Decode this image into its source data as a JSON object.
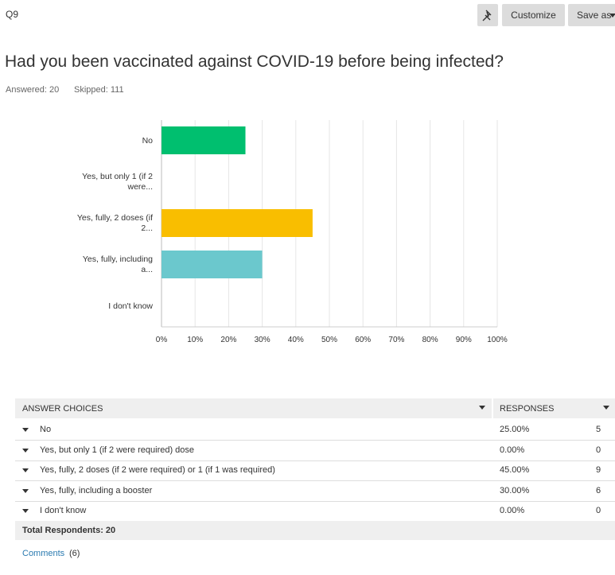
{
  "header": {
    "question_id": "Q9",
    "buttons": {
      "customize": "Customize",
      "save_as": "Save as"
    },
    "title": "Had you been vaccinated against COVID-19 before being infected?",
    "answered": "Answered: 20",
    "skipped": "Skipped: 111"
  },
  "chart_data": {
    "type": "bar",
    "orientation": "horizontal",
    "categories": [
      "No",
      "Yes, but only 1 (if 2 were...",
      "Yes, fully, 2 doses (if 2...",
      "Yes, fully, including a...",
      "I don't know"
    ],
    "values": [
      25,
      0,
      45,
      30,
      0
    ],
    "colors": [
      "#00bf6f",
      "#507cb6",
      "#f9be00",
      "#6bc8cd",
      "#ff8b4f"
    ],
    "xlim": [
      0,
      100
    ],
    "xticks": [
      {
        "value": 0,
        "label": "0%"
      },
      {
        "value": 10,
        "label": "10%"
      },
      {
        "value": 20,
        "label": "20%"
      },
      {
        "value": 30,
        "label": "30%"
      },
      {
        "value": 40,
        "label": "40%"
      },
      {
        "value": 50,
        "label": "50%"
      },
      {
        "value": 60,
        "label": "60%"
      },
      {
        "value": 70,
        "label": "70%"
      },
      {
        "value": 80,
        "label": "80%"
      },
      {
        "value": 90,
        "label": "90%"
      },
      {
        "value": 100,
        "label": "100%"
      }
    ],
    "grid": true
  },
  "table": {
    "headers": [
      "ANSWER CHOICES",
      "RESPONSES"
    ],
    "rows": [
      [
        "No",
        "25.00%",
        5
      ],
      [
        "Yes, but only 1 (if 2 were required) dose",
        "0.00%",
        0
      ],
      [
        "Yes, fully, 2 doses (if 2 were required) or 1 (if 1 was required)",
        "45.00%",
        9
      ],
      [
        "Yes, fully, including a booster",
        "30.00%",
        6
      ],
      [
        "I don't know",
        "0.00%",
        0
      ]
    ],
    "total": "Total Respondents: 20"
  },
  "comments": {
    "label": "Comments",
    "count": "(6)"
  }
}
